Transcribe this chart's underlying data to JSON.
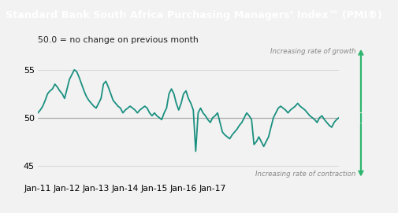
{
  "title": "Standard Bank South Africa Purchasing Managers’ Index™ (PMI®)",
  "subtitle": "50.0 = no change on previous month",
  "title_bg_color": "#3aaa35",
  "title_text_color": "#ffffff",
  "line_color": "#1a9080",
  "bg_color": "#f2f2f2",
  "arrow_color": "#2db56e",
  "ref_line_color": "#aaaaaa",
  "growth_label": "Increasing rate of growth",
  "contraction_label": "Increasing rate of contraction",
  "ylim": [
    43.5,
    57.5
  ],
  "yticks": [
    45,
    50,
    55
  ],
  "xlabel_dates": [
    "Jan-11",
    "Jan-12",
    "Jan-13",
    "Jan-14",
    "Jan-15",
    "Jan-16",
    "Jan-17"
  ],
  "pmi_values": [
    50.5,
    50.8,
    51.2,
    51.8,
    52.5,
    52.8,
    53.0,
    53.5,
    53.2,
    52.8,
    52.5,
    52.0,
    53.0,
    54.0,
    54.5,
    55.0,
    54.8,
    54.2,
    53.5,
    52.8,
    52.2,
    51.8,
    51.5,
    51.2,
    51.0,
    51.5,
    52.0,
    53.5,
    53.8,
    53.2,
    52.5,
    51.8,
    51.5,
    51.2,
    51.0,
    50.5,
    50.8,
    51.0,
    51.2,
    51.0,
    50.8,
    50.5,
    50.8,
    51.0,
    51.2,
    51.0,
    50.5,
    50.2,
    50.5,
    50.2,
    50.0,
    49.8,
    50.5,
    51.0,
    52.5,
    53.0,
    52.5,
    51.5,
    50.8,
    51.5,
    52.5,
    52.8,
    52.0,
    51.5,
    50.8,
    46.5,
    50.5,
    51.0,
    50.5,
    50.2,
    49.8,
    49.5,
    50.0,
    50.2,
    50.5,
    49.5,
    48.5,
    48.2,
    48.0,
    47.8,
    48.2,
    48.5,
    48.8,
    49.2,
    49.5,
    50.0,
    50.5,
    50.2,
    49.8,
    47.2,
    47.5,
    48.0,
    47.5,
    47.0,
    47.5,
    48.0,
    49.0,
    50.0,
    50.5,
    51.0,
    51.2,
    51.0,
    50.8,
    50.5,
    50.8,
    51.0,
    51.2,
    51.5,
    51.2,
    51.0,
    50.8,
    50.5,
    50.2,
    50.0,
    49.8,
    49.5,
    50.0,
    50.2,
    49.8,
    49.5,
    49.2,
    49.0,
    49.5,
    49.8,
    50.0
  ]
}
